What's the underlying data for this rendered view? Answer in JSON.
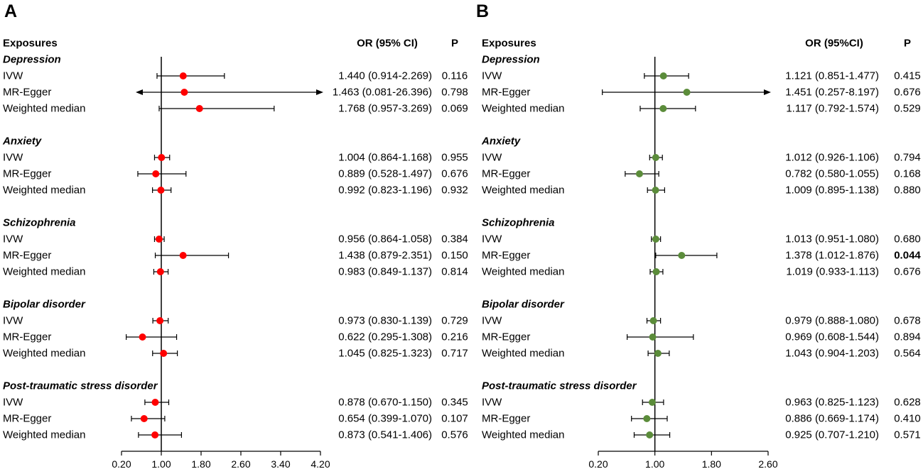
{
  "chart_data": [
    {
      "type": "forest",
      "panel_label": "A",
      "headers": {
        "exposures": "Exposures",
        "or": "OR (95% CI)",
        "p": "P"
      },
      "point_color": "#ff0000",
      "reference_value": 1.0,
      "xlim": [
        0.2,
        4.2
      ],
      "ticks": [
        0.2,
        1.0,
        1.8,
        2.6,
        3.4,
        4.2
      ],
      "tick_labels": [
        "0.20",
        "1.00",
        "1.80",
        "2.60",
        "3.40",
        "4.20"
      ],
      "groups": [
        {
          "name": "Depression",
          "rows": [
            {
              "method": "IVW",
              "or": 1.44,
              "lo": 0.914,
              "hi": 2.269,
              "or_text": "1.440 (0.914-2.269)",
              "p": "0.116",
              "p_bold": false
            },
            {
              "method": "MR-Egger",
              "or": 1.463,
              "lo": 0.081,
              "hi": 26.396,
              "or_text": "1.463 (0.081-26.396)",
              "p": "0.798",
              "p_bold": false
            },
            {
              "method": "Weighted median",
              "or": 1.768,
              "lo": 0.957,
              "hi": 3.269,
              "or_text": "1.768 (0.957-3.269)",
              "p": "0.069",
              "p_bold": false
            }
          ]
        },
        {
          "name": "Anxiety",
          "rows": [
            {
              "method": "IVW",
              "or": 1.004,
              "lo": 0.864,
              "hi": 1.168,
              "or_text": "1.004 (0.864-1.168)",
              "p": "0.955",
              "p_bold": false
            },
            {
              "method": "MR-Egger",
              "or": 0.889,
              "lo": 0.528,
              "hi": 1.497,
              "or_text": "0.889 (0.528-1.497)",
              "p": "0.676",
              "p_bold": false
            },
            {
              "method": "Weighted median",
              "or": 0.992,
              "lo": 0.823,
              "hi": 1.196,
              "or_text": "0.992 (0.823-1.196)",
              "p": "0.932",
              "p_bold": false
            }
          ]
        },
        {
          "name": "Schizophrenia",
          "rows": [
            {
              "method": "IVW",
              "or": 0.956,
              "lo": 0.864,
              "hi": 1.058,
              "or_text": "0.956 (0.864-1.058)",
              "p": "0.384",
              "p_bold": false
            },
            {
              "method": "MR-Egger",
              "or": 1.438,
              "lo": 0.879,
              "hi": 2.351,
              "or_text": "1.438 (0.879-2.351)",
              "p": "0.150",
              "p_bold": false
            },
            {
              "method": "Weighted median",
              "or": 0.983,
              "lo": 0.849,
              "hi": 1.137,
              "or_text": "0.983 (0.849-1.137)",
              "p": "0.814",
              "p_bold": false
            }
          ]
        },
        {
          "name": "Bipolar disorder",
          "rows": [
            {
              "method": "IVW",
              "or": 0.973,
              "lo": 0.83,
              "hi": 1.139,
              "or_text": "0.973 (0.830-1.139)",
              "p": "0.729",
              "p_bold": false
            },
            {
              "method": "MR-Egger",
              "or": 0.622,
              "lo": 0.295,
              "hi": 1.308,
              "or_text": "0.622 (0.295-1.308)",
              "p": "0.216",
              "p_bold": false
            },
            {
              "method": "Weighted median",
              "or": 1.045,
              "lo": 0.825,
              "hi": 1.323,
              "or_text": "1.045 (0.825-1.323)",
              "p": "0.717",
              "p_bold": false
            }
          ]
        },
        {
          "name": "Post-traumatic stress disorder",
          "rows": [
            {
              "method": "IVW",
              "or": 0.878,
              "lo": 0.67,
              "hi": 1.15,
              "or_text": "0.878 (0.670-1.150)",
              "p": "0.345",
              "p_bold": false
            },
            {
              "method": "MR-Egger",
              "or": 0.654,
              "lo": 0.399,
              "hi": 1.07,
              "or_text": "0.654 (0.399-1.070)",
              "p": "0.107",
              "p_bold": false
            },
            {
              "method": "Weighted median",
              "or": 0.873,
              "lo": 0.541,
              "hi": 1.406,
              "or_text": "0.873 (0.541-1.406)",
              "p": "0.576",
              "p_bold": false
            }
          ]
        }
      ]
    },
    {
      "type": "forest",
      "panel_label": "B",
      "headers": {
        "exposures": "Exposures",
        "or": "OR (95%CI)",
        "p": "P"
      },
      "point_color": "#5b8c3a",
      "reference_value": 1.0,
      "xlim": [
        0.2,
        2.6
      ],
      "ticks": [
        0.2,
        1.0,
        1.8,
        2.6
      ],
      "tick_labels": [
        "0.20",
        "1.00",
        "1.80",
        "2.60"
      ],
      "groups": [
        {
          "name": "Depression",
          "rows": [
            {
              "method": "IVW",
              "or": 1.121,
              "lo": 0.851,
              "hi": 1.477,
              "or_text": "1.121 (0.851-1.477)",
              "p": "0.415",
              "p_bold": false
            },
            {
              "method": "MR-Egger",
              "or": 1.451,
              "lo": 0.257,
              "hi": 8.197,
              "or_text": "1.451 (0.257-8.197)",
              "p": "0.676",
              "p_bold": false
            },
            {
              "method": "Weighted median",
              "or": 1.117,
              "lo": 0.792,
              "hi": 1.574,
              "or_text": "1.117 (0.792-1.574)",
              "p": "0.529",
              "p_bold": false
            }
          ]
        },
        {
          "name": "Anxiety",
          "rows": [
            {
              "method": "IVW",
              "or": 1.012,
              "lo": 0.926,
              "hi": 1.106,
              "or_text": "1.012 (0.926-1.106)",
              "p": "0.794",
              "p_bold": false
            },
            {
              "method": "MR-Egger",
              "or": 0.782,
              "lo": 0.58,
              "hi": 1.055,
              "or_text": "0.782 (0.580-1.055)",
              "p": "0.168",
              "p_bold": false
            },
            {
              "method": "Weighted median",
              "or": 1.009,
              "lo": 0.895,
              "hi": 1.138,
              "or_text": "1.009 (0.895-1.138)",
              "p": "0.880",
              "p_bold": false
            }
          ]
        },
        {
          "name": "Schizophrenia",
          "rows": [
            {
              "method": "IVW",
              "or": 1.013,
              "lo": 0.951,
              "hi": 1.08,
              "or_text": "1.013 (0.951-1.080)",
              "p": "0.680",
              "p_bold": false
            },
            {
              "method": "MR-Egger",
              "or": 1.378,
              "lo": 1.012,
              "hi": 1.876,
              "or_text": "1.378 (1.012-1.876)",
              "p": "0.044",
              "p_bold": true
            },
            {
              "method": "Weighted median",
              "or": 1.019,
              "lo": 0.933,
              "hi": 1.113,
              "or_text": "1.019 (0.933-1.113)",
              "p": "0.676",
              "p_bold": false
            }
          ]
        },
        {
          "name": "Bipolar disorder",
          "rows": [
            {
              "method": "IVW",
              "or": 0.979,
              "lo": 0.888,
              "hi": 1.08,
              "or_text": "0.979 (0.888-1.080)",
              "p": "0.678",
              "p_bold": false
            },
            {
              "method": "MR-Egger",
              "or": 0.969,
              "lo": 0.608,
              "hi": 1.544,
              "or_text": "0.969 (0.608-1.544)",
              "p": "0.894",
              "p_bold": false
            },
            {
              "method": "Weighted median",
              "or": 1.043,
              "lo": 0.904,
              "hi": 1.203,
              "or_text": "1.043 (0.904-1.203)",
              "p": "0.564",
              "p_bold": false
            }
          ]
        },
        {
          "name": "Post-traumatic stress disorder",
          "rows": [
            {
              "method": "IVW",
              "or": 0.963,
              "lo": 0.825,
              "hi": 1.123,
              "or_text": "0.963 (0.825-1.123)",
              "p": "0.628",
              "p_bold": false
            },
            {
              "method": "MR-Egger",
              "or": 0.886,
              "lo": 0.669,
              "hi": 1.174,
              "or_text": "0.886 (0.669-1.174)",
              "p": "0.410",
              "p_bold": false
            },
            {
              "method": "Weighted median",
              "or": 0.925,
              "lo": 0.707,
              "hi": 1.21,
              "or_text": "0.925 (0.707-1.210)",
              "p": "0.571",
              "p_bold": false
            }
          ]
        }
      ]
    }
  ]
}
